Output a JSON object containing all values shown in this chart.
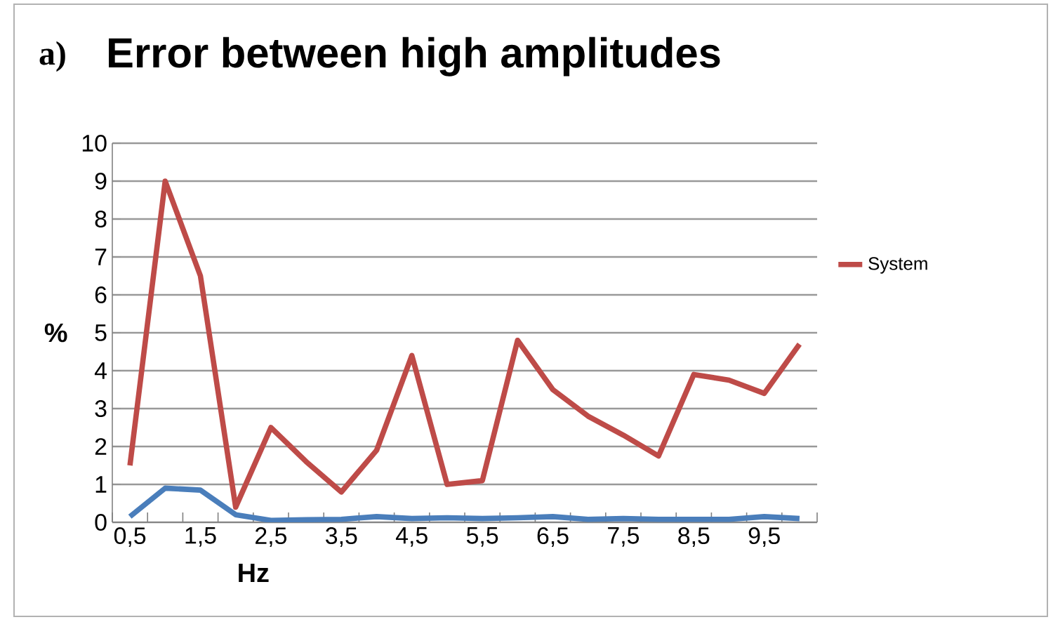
{
  "chart_data": {
    "type": "line",
    "title": "Error between high amplitudes",
    "annotations": [
      "a)"
    ],
    "xlabel": "Hz",
    "ylabel": "%",
    "categories": [
      "0,5",
      null,
      "1,5",
      null,
      "2,5",
      null,
      "3,5",
      null,
      "4,5",
      null,
      "5,5",
      null,
      "6,5",
      null,
      "7,5",
      null,
      "8,5",
      null,
      "9,5",
      null
    ],
    "series": [
      {
        "color": "#4a7ebb",
        "values": [
          0.15,
          0.9,
          0.85,
          0.2,
          0.05,
          0.07,
          0.08,
          0.15,
          0.1,
          0.12,
          0.1,
          0.12,
          0.15,
          0.08,
          0.1,
          0.08,
          0.08,
          0.08,
          0.15,
          0.1
        ]
      },
      {
        "name": "System",
        "color": "#be4b48",
        "values": [
          1.5,
          9.0,
          6.5,
          0.4,
          2.5,
          1.6,
          0.8,
          1.9,
          4.4,
          1.0,
          1.1,
          4.8,
          3.5,
          2.8,
          2.3,
          1.75,
          3.9,
          3.75,
          3.4,
          4.7
        ]
      }
    ],
    "ylim": [
      0,
      10
    ],
    "yticks": [
      0,
      1,
      2,
      3,
      4,
      5,
      6,
      7,
      8,
      9,
      10
    ],
    "grid": "y",
    "legend": "right",
    "marker": "none",
    "line_style": "solid"
  }
}
